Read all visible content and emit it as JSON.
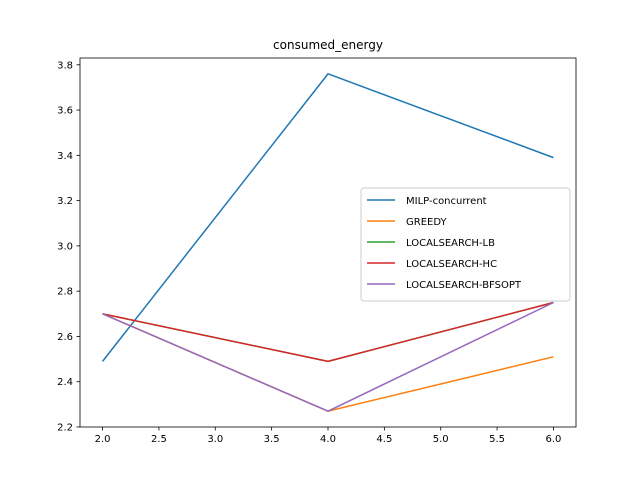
{
  "chart_data": {
    "type": "line",
    "title": "consumed_energy",
    "xlabel": "",
    "ylabel": "",
    "x": [
      2,
      4,
      6
    ],
    "xlim": [
      1.8,
      6.2
    ],
    "ylim": [
      2.2,
      3.83
    ],
    "xticks": [
      "2.0",
      "2.5",
      "3.0",
      "3.5",
      "4.0",
      "4.5",
      "5.0",
      "5.5",
      "6.0"
    ],
    "yticks": [
      "2.2",
      "2.4",
      "2.6",
      "2.8",
      "3.0",
      "3.2",
      "3.4",
      "3.6",
      "3.8"
    ],
    "grid": false,
    "legend_position": "center-right",
    "series": [
      {
        "name": "MILP-concurrent",
        "color": "#1f77b4",
        "values": [
          2.49,
          3.76,
          3.39
        ]
      },
      {
        "name": "GREEDY",
        "color": "#ff7f0e",
        "values": [
          2.7,
          2.27,
          2.51
        ]
      },
      {
        "name": "LOCALSEARCH-LB",
        "color": "#2ca02c",
        "values": [
          2.7,
          2.49,
          2.75
        ]
      },
      {
        "name": "LOCALSEARCH-HC",
        "color": "#d62728",
        "values": [
          2.7,
          2.49,
          2.75
        ]
      },
      {
        "name": "LOCALSEARCH-BFSOPT",
        "color": "#9467bd",
        "values": [
          2.7,
          2.27,
          2.75
        ]
      }
    ]
  }
}
